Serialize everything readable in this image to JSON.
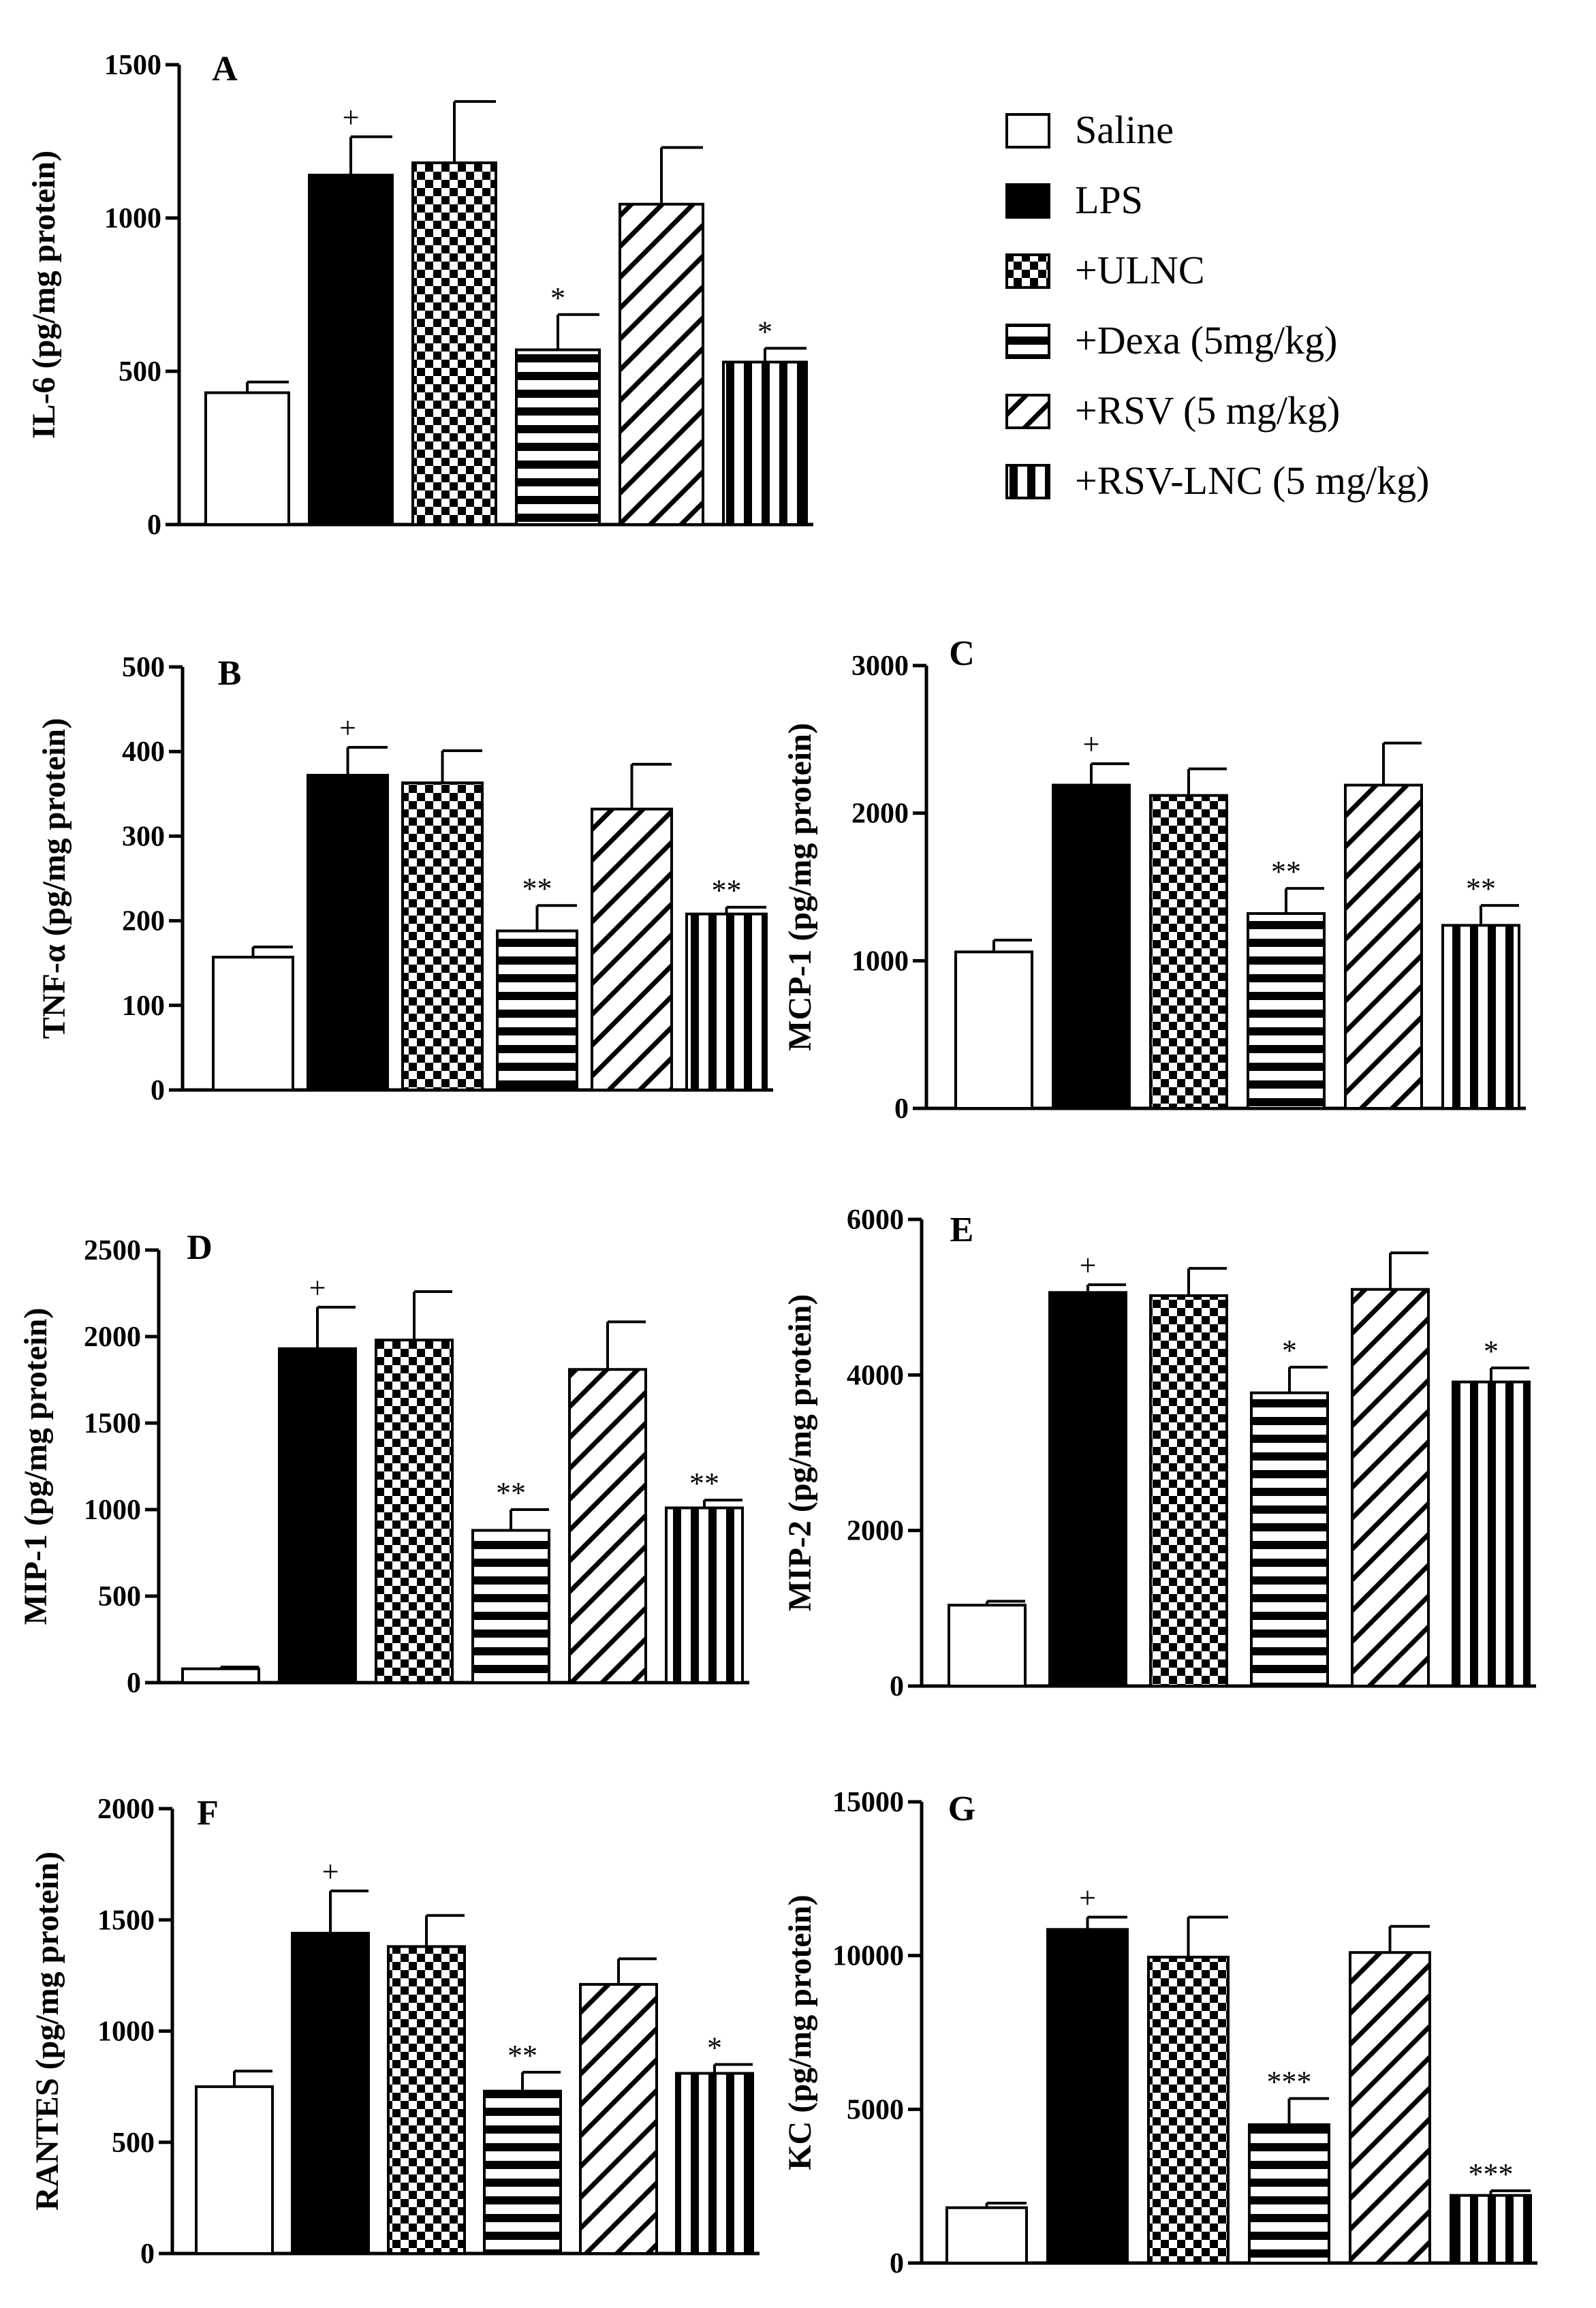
{
  "chart_data": [
    {
      "type": "bar",
      "panel": "A",
      "ylabel": "IL-6 (pg/mg protein)",
      "ylim": [
        0,
        1500
      ],
      "yticks": [
        0,
        500,
        1000,
        1500
      ],
      "categories": [
        "Saline",
        "LPS",
        "+ULNC",
        "+Dexa (5mg/kg)",
        "+RSV (5 mg/kg)",
        "+RSV-LNC (5 mg/kg)"
      ],
      "values": [
        430,
        1140,
        1180,
        570,
        1045,
        530
      ],
      "errors": [
        35,
        125,
        200,
        115,
        185,
        45
      ],
      "significance": [
        "",
        "+",
        "",
        "*",
        "",
        "*"
      ]
    },
    {
      "type": "bar",
      "panel": "B",
      "ylabel": "TNF-α (pg/mg protein)",
      "ylim": [
        0,
        500
      ],
      "yticks": [
        0,
        100,
        200,
        300,
        400,
        500
      ],
      "categories": [
        "Saline",
        "LPS",
        "+ULNC",
        "+Dexa (5mg/kg)",
        "+RSV (5 mg/kg)",
        "+RSV-LNC (5 mg/kg)"
      ],
      "values": [
        157,
        372,
        363,
        188,
        332,
        208
      ],
      "errors": [
        12,
        33,
        38,
        30,
        53,
        8
      ],
      "significance": [
        "",
        "+",
        "",
        "**",
        "",
        "**"
      ]
    },
    {
      "type": "bar",
      "panel": "C",
      "ylabel": "MCP-1 (pg/mg protein)",
      "ylim": [
        0,
        3000
      ],
      "yticks": [
        0,
        1000,
        2000,
        3000
      ],
      "categories": [
        "Saline",
        "LPS",
        "+ULNC",
        "+Dexa (5mg/kg)",
        "+RSV (5 mg/kg)",
        "+RSV-LNC (5 mg/kg)"
      ],
      "values": [
        1060,
        2190,
        2120,
        1320,
        2190,
        1240
      ],
      "errors": [
        80,
        145,
        180,
        170,
        285,
        135
      ],
      "significance": [
        "",
        "+",
        "",
        "**",
        "",
        "**"
      ]
    },
    {
      "type": "bar",
      "panel": "D",
      "ylabel": "MIP-1 (pg/mg protein)",
      "ylim": [
        0,
        2500
      ],
      "yticks": [
        0,
        500,
        1000,
        1500,
        2000,
        2500
      ],
      "categories": [
        "Saline",
        "LPS",
        "+ULNC",
        "+Dexa (5mg/kg)",
        "+RSV (5 mg/kg)",
        "+RSV-LNC (5 mg/kg)"
      ],
      "values": [
        80,
        1930,
        1980,
        880,
        1810,
        1010
      ],
      "errors": [
        10,
        240,
        280,
        120,
        275,
        45
      ],
      "significance": [
        "",
        "+",
        "",
        "**",
        "",
        "**"
      ]
    },
    {
      "type": "bar",
      "panel": "E",
      "ylabel": "MIP-2 (pg/mg protein)",
      "ylim": [
        0,
        6000
      ],
      "yticks": [
        0,
        2000,
        4000,
        6000
      ],
      "categories": [
        "Saline",
        "LPS",
        "+ULNC",
        "+Dexa (5mg/kg)",
        "+RSV (5 mg/kg)",
        "+RSV-LNC (5 mg/kg)"
      ],
      "values": [
        1040,
        5060,
        5020,
        3770,
        5100,
        3910
      ],
      "errors": [
        50,
        100,
        350,
        330,
        470,
        180
      ],
      "significance": [
        "",
        "+",
        "",
        "*",
        "",
        "*"
      ]
    },
    {
      "type": "bar",
      "panel": "F",
      "ylabel": "RANTES (pg/mg protein)",
      "ylim": [
        0,
        2000
      ],
      "yticks": [
        0,
        500,
        1000,
        1500,
        2000
      ],
      "categories": [
        "Saline",
        "LPS",
        "+ULNC",
        "+Dexa (5mg/kg)",
        "+RSV (5 mg/kg)",
        "+RSV-LNC (5 mg/kg)"
      ],
      "values": [
        750,
        1440,
        1380,
        730,
        1210,
        810
      ],
      "errors": [
        70,
        190,
        140,
        85,
        115,
        40
      ],
      "significance": [
        "",
        "+",
        "",
        "**",
        "",
        "*"
      ]
    },
    {
      "type": "bar",
      "panel": "G",
      "ylabel": "KC (pg/mg protein)",
      "ylim": [
        0,
        15000
      ],
      "yticks": [
        0,
        5000,
        10000,
        15000
      ],
      "categories": [
        "Saline",
        "LPS",
        "+ULNC",
        "+Dexa (5mg/kg)",
        "+RSV (5 mg/kg)",
        "+RSV-LNC (5 mg/kg)"
      ],
      "values": [
        1800,
        10850,
        9950,
        4500,
        10100,
        2200
      ],
      "errors": [
        150,
        400,
        1300,
        850,
        850,
        150
      ],
      "significance": [
        "",
        "+",
        "",
        "***",
        "",
        "***"
      ]
    }
  ],
  "legend": [
    {
      "label": "Saline",
      "pattern": "white"
    },
    {
      "label": "LPS",
      "pattern": "black"
    },
    {
      "label": "+ULNC",
      "pattern": "checker"
    },
    {
      "label": "+Dexa (5mg/kg)",
      "pattern": "hstripes"
    },
    {
      "label": "+RSV (5 mg/kg)",
      "pattern": "diag"
    },
    {
      "label": "+RSV-LNC (5 mg/kg)",
      "pattern": "vstripes"
    }
  ]
}
